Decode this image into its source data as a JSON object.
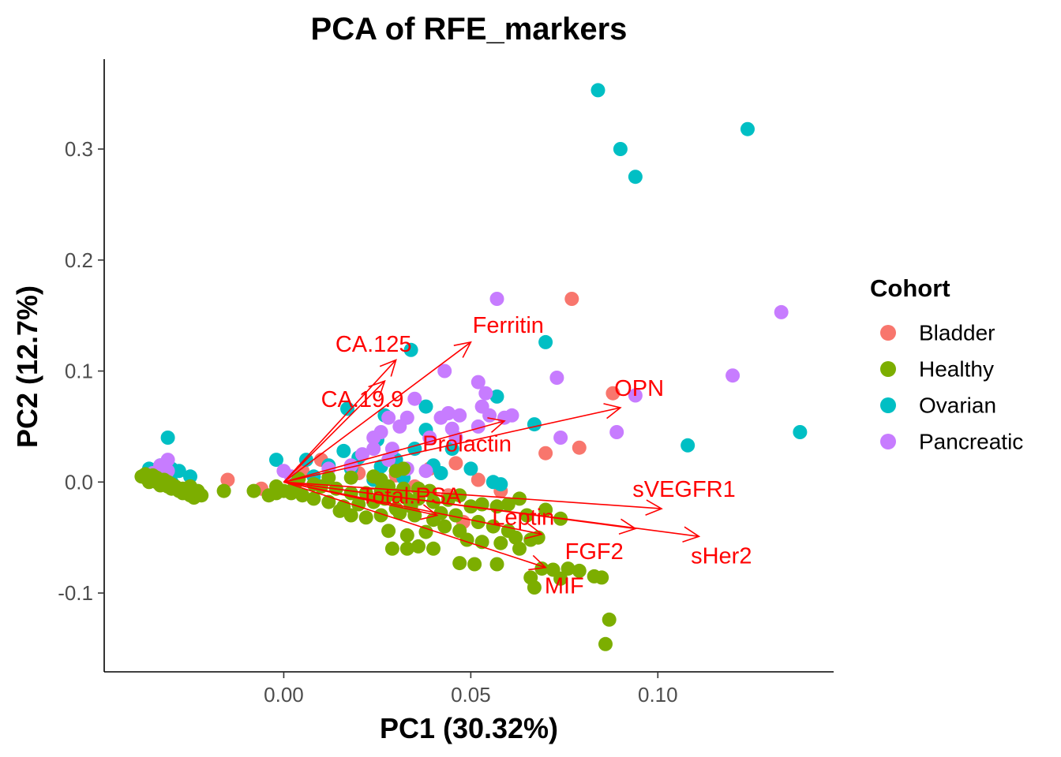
{
  "chart_data": {
    "type": "scatter",
    "title": "PCA of RFE_markers",
    "xlabel": "PC1 (30.32%)",
    "ylabel": "PC2 (12.7%)",
    "xlim": [
      -0.048,
      0.147
    ],
    "ylim": [
      -0.171,
      0.381
    ],
    "x_ticks": [
      0.0,
      0.05,
      0.1
    ],
    "x_tick_labels": [
      "0.00",
      "0.05",
      "0.10"
    ],
    "y_ticks": [
      -0.1,
      0.0,
      0.1,
      0.2,
      0.3
    ],
    "y_tick_labels": [
      "-0.1",
      "0.0",
      "0.1",
      "0.2",
      "0.3"
    ],
    "grid": false,
    "legend": {
      "title": "Cohort",
      "position": "right"
    },
    "series": [
      {
        "name": "Bladder",
        "color": "#F8766D",
        "points": [
          [
            0.077,
            0.165
          ],
          [
            0.088,
            0.08
          ],
          [
            0.079,
            0.031
          ],
          [
            0.07,
            0.026
          ],
          [
            0.046,
            0.017
          ],
          [
            0.039,
            0.012
          ],
          [
            0.052,
            0.002
          ],
          [
            0.03,
            0.006
          ],
          [
            0.01,
            0.02
          ],
          [
            -0.015,
            0.002
          ],
          [
            -0.006,
            -0.006
          ],
          [
            0.005,
            0.01
          ],
          [
            0.02,
            0.008
          ],
          [
            0.035,
            -0.004
          ],
          [
            0.044,
            -0.012
          ],
          [
            0.058,
            -0.008
          ],
          [
            0.048,
            -0.036
          ]
        ]
      },
      {
        "name": "Ovarian",
        "color": "#00BFC4",
        "points": [
          [
            0.084,
            0.353
          ],
          [
            0.124,
            0.318
          ],
          [
            0.09,
            0.3
          ],
          [
            0.094,
            0.275
          ],
          [
            0.07,
            0.126
          ],
          [
            0.034,
            0.119
          ],
          [
            0.057,
            0.077
          ],
          [
            0.038,
            0.068
          ],
          [
            0.017,
            0.066
          ],
          [
            0.027,
            0.06
          ],
          [
            0.067,
            0.052
          ],
          [
            0.038,
            0.047
          ],
          [
            0.006,
            0.02
          ],
          [
            -0.002,
            0.02
          ],
          [
            -0.031,
            0.04
          ],
          [
            0.108,
            0.033
          ],
          [
            0.138,
            0.045
          ],
          [
            0.025,
            0.038
          ],
          [
            0.016,
            0.028
          ],
          [
            0.02,
            0.022
          ],
          [
            0.03,
            0.02
          ],
          [
            0.035,
            0.03
          ],
          [
            0.045,
            0.03
          ],
          [
            0.012,
            0.015
          ],
          [
            0.018,
            0.012
          ],
          [
            0.026,
            0.014
          ],
          [
            0.04,
            0.015
          ],
          [
            0.008,
            0.005
          ],
          [
            0.032,
            0.004
          ],
          [
            0.042,
            0.008
          ],
          [
            0.024,
            0.002
          ],
          [
            0.05,
            0.012
          ],
          [
            0.056,
            0.0
          ],
          [
            0.058,
            -0.002
          ],
          [
            0.002,
            -0.008
          ],
          [
            -0.036,
            0.012
          ],
          [
            -0.033,
            0.015
          ],
          [
            -0.03,
            0.012
          ],
          [
            -0.028,
            0.01
          ],
          [
            -0.025,
            0.005
          ],
          [
            -0.03,
            0.0
          ]
        ]
      },
      {
        "name": "Pancreatic",
        "color": "#C77CFF",
        "points": [
          [
            0.057,
            0.165
          ],
          [
            0.133,
            0.153
          ],
          [
            0.12,
            0.096
          ],
          [
            0.043,
            0.1
          ],
          [
            0.073,
            0.094
          ],
          [
            0.052,
            0.09
          ],
          [
            0.054,
            0.08
          ],
          [
            0.035,
            0.075
          ],
          [
            0.094,
            0.078
          ],
          [
            0.053,
            0.068
          ],
          [
            0.044,
            0.062
          ],
          [
            0.042,
            0.058
          ],
          [
            0.047,
            0.06
          ],
          [
            0.055,
            0.06
          ],
          [
            0.059,
            0.058
          ],
          [
            0.061,
            0.06
          ],
          [
            0.033,
            0.058
          ],
          [
            0.028,
            0.058
          ],
          [
            0.031,
            0.05
          ],
          [
            0.052,
            0.05
          ],
          [
            0.045,
            0.048
          ],
          [
            0.026,
            0.045
          ],
          [
            0.024,
            0.04
          ],
          [
            0.089,
            0.045
          ],
          [
            0.074,
            0.04
          ],
          [
            0.046,
            0.04
          ],
          [
            0.039,
            0.04
          ],
          [
            0.029,
            0.03
          ],
          [
            0.024,
            0.03
          ],
          [
            0.021,
            0.025
          ],
          [
            0.028,
            0.02
          ],
          [
            0.033,
            0.012
          ],
          [
            0.038,
            0.01
          ],
          [
            0.018,
            0.015
          ],
          [
            0.012,
            0.012
          ],
          [
            0.0,
            0.01
          ],
          [
            0.002,
            0.005
          ],
          [
            -0.031,
            0.02
          ],
          [
            -0.033,
            0.015
          ],
          [
            -0.031,
            0.01
          ],
          [
            -0.035,
            0.008
          ]
        ]
      },
      {
        "name": "Healthy",
        "color": "#7CAE00",
        "points": [
          [
            0.086,
            -0.146
          ],
          [
            0.087,
            -0.124
          ],
          [
            0.067,
            -0.095
          ],
          [
            0.066,
            -0.086
          ],
          [
            0.074,
            -0.087
          ],
          [
            0.083,
            -0.085
          ],
          [
            0.085,
            -0.086
          ],
          [
            0.079,
            -0.08
          ],
          [
            0.076,
            -0.078
          ],
          [
            0.072,
            -0.079
          ],
          [
            0.069,
            -0.078
          ],
          [
            0.057,
            -0.074
          ],
          [
            0.051,
            -0.074
          ],
          [
            0.047,
            -0.073
          ],
          [
            0.04,
            -0.06
          ],
          [
            0.036,
            -0.058
          ],
          [
            0.033,
            -0.06
          ],
          [
            0.029,
            -0.06
          ],
          [
            0.063,
            -0.06
          ],
          [
            0.058,
            -0.055
          ],
          [
            0.053,
            -0.054
          ],
          [
            0.049,
            -0.052
          ],
          [
            0.062,
            -0.05
          ],
          [
            0.066,
            -0.052
          ],
          [
            0.068,
            -0.05
          ],
          [
            0.074,
            -0.033
          ],
          [
            0.07,
            -0.025
          ],
          [
            0.065,
            -0.03
          ],
          [
            0.06,
            -0.02
          ],
          [
            0.063,
            -0.015
          ],
          [
            0.057,
            -0.022
          ],
          [
            0.053,
            -0.02
          ],
          [
            0.05,
            -0.022
          ],
          [
            0.047,
            -0.012
          ],
          [
            0.044,
            -0.016
          ],
          [
            0.04,
            -0.018
          ],
          [
            0.036,
            -0.015
          ],
          [
            0.033,
            -0.015
          ],
          [
            0.03,
            -0.012
          ],
          [
            0.027,
            -0.015
          ],
          [
            0.024,
            -0.018
          ],
          [
            0.02,
            -0.02
          ],
          [
            0.016,
            -0.022
          ],
          [
            0.012,
            -0.018
          ],
          [
            0.008,
            -0.015
          ],
          [
            0.005,
            -0.012
          ],
          [
            0.002,
            -0.01
          ],
          [
            0.0,
            -0.008
          ],
          [
            -0.002,
            -0.01
          ],
          [
            -0.004,
            -0.012
          ],
          [
            -0.002,
            -0.004
          ],
          [
            0.003,
            -0.002
          ],
          [
            0.01,
            -0.004
          ],
          [
            0.014,
            -0.006
          ],
          [
            0.018,
            -0.01
          ],
          [
            0.022,
            -0.01
          ],
          [
            0.026,
            -0.008
          ],
          [
            0.028,
            -0.004
          ],
          [
            0.032,
            -0.006
          ],
          [
            0.036,
            -0.006
          ],
          [
            0.039,
            -0.008
          ],
          [
            0.042,
            -0.028
          ],
          [
            0.046,
            -0.03
          ],
          [
            0.04,
            -0.034
          ],
          [
            0.035,
            -0.03
          ],
          [
            0.031,
            -0.028
          ],
          [
            0.026,
            -0.03
          ],
          [
            0.022,
            -0.032
          ],
          [
            0.018,
            -0.03
          ],
          [
            0.015,
            -0.026
          ],
          [
            0.043,
            -0.04
          ],
          [
            0.038,
            -0.045
          ],
          [
            0.033,
            -0.048
          ],
          [
            0.028,
            -0.044
          ],
          [
            0.047,
            -0.044
          ],
          [
            0.052,
            -0.036
          ],
          [
            0.056,
            -0.04
          ],
          [
            0.06,
            -0.044
          ],
          [
            0.034,
            -0.022
          ],
          [
            0.03,
            -0.024
          ],
          [
            0.026,
            0.002
          ],
          [
            0.03,
            0.01
          ],
          [
            0.032,
            0.012
          ],
          [
            0.024,
            0.005
          ],
          [
            0.018,
            0.004
          ],
          [
            0.012,
            0.004
          ],
          [
            0.008,
            -0.002
          ],
          [
            0.004,
            0.003
          ],
          [
            -0.008,
            -0.008
          ],
          [
            -0.016,
            -0.008
          ],
          [
            -0.022,
            -0.012
          ],
          [
            -0.024,
            -0.014
          ],
          [
            -0.025,
            -0.004
          ],
          [
            -0.027,
            -0.01
          ],
          [
            -0.028,
            -0.008
          ],
          [
            -0.03,
            -0.006
          ],
          [
            -0.031,
            -0.004
          ],
          [
            -0.032,
            -0.002
          ],
          [
            -0.033,
            -0.003
          ],
          [
            -0.034,
            0.0
          ],
          [
            -0.035,
            0.002
          ],
          [
            -0.036,
            0.0
          ],
          [
            -0.037,
            0.004
          ],
          [
            -0.038,
            0.005
          ],
          [
            -0.037,
            0.007
          ],
          [
            -0.036,
            0.005
          ],
          [
            -0.035,
            0.006
          ],
          [
            -0.034,
            0.004
          ],
          [
            -0.033,
            0.002
          ],
          [
            -0.032,
            0.002
          ],
          [
            -0.031,
            0.0
          ],
          [
            -0.03,
            -0.002
          ],
          [
            -0.029,
            -0.004
          ],
          [
            -0.028,
            -0.006
          ],
          [
            -0.027,
            -0.006
          ],
          [
            -0.026,
            -0.01
          ],
          [
            -0.025,
            -0.012
          ],
          [
            -0.024,
            -0.012
          ],
          [
            -0.023,
            -0.008
          ]
        ]
      }
    ],
    "loadings": [
      {
        "label": "Ferritin",
        "x": 0.05,
        "y": 0.126,
        "label_x": 0.06,
        "label_y": 0.141
      },
      {
        "label": "CA.125",
        "x": 0.03,
        "y": 0.11,
        "label_x": 0.024,
        "label_y": 0.124
      },
      {
        "label": "CA.19.9",
        "x": 0.027,
        "y": 0.091,
        "label_x": 0.021,
        "label_y": 0.074
      },
      {
        "label": "OPN",
        "x": 0.09,
        "y": 0.067,
        "label_x": 0.095,
        "label_y": 0.084
      },
      {
        "label": "Prolactin",
        "x": 0.059,
        "y": 0.055,
        "label_x": 0.049,
        "label_y": 0.034
      },
      {
        "label": "sVEGFR1",
        "x": 0.101,
        "y": -0.024,
        "label_x": 0.107,
        "label_y": -0.007
      },
      {
        "label": "sHer2",
        "x": 0.111,
        "y": -0.049,
        "label_x": 0.117,
        "label_y": -0.067
      },
      {
        "label": "FGF2",
        "x": 0.094,
        "y": -0.042,
        "label_x": 0.083,
        "label_y": -0.063
      },
      {
        "label": "Leptin",
        "x": 0.069,
        "y": -0.047,
        "label_x": 0.064,
        "label_y": -0.032
      },
      {
        "label": "Total.PSA",
        "x": 0.041,
        "y": -0.03,
        "label_x": 0.034,
        "label_y": -0.013
      },
      {
        "label": "MIF",
        "x": 0.07,
        "y": -0.077,
        "label_x": 0.075,
        "label_y": -0.094
      }
    ],
    "arrow_color": "#FF0000"
  }
}
